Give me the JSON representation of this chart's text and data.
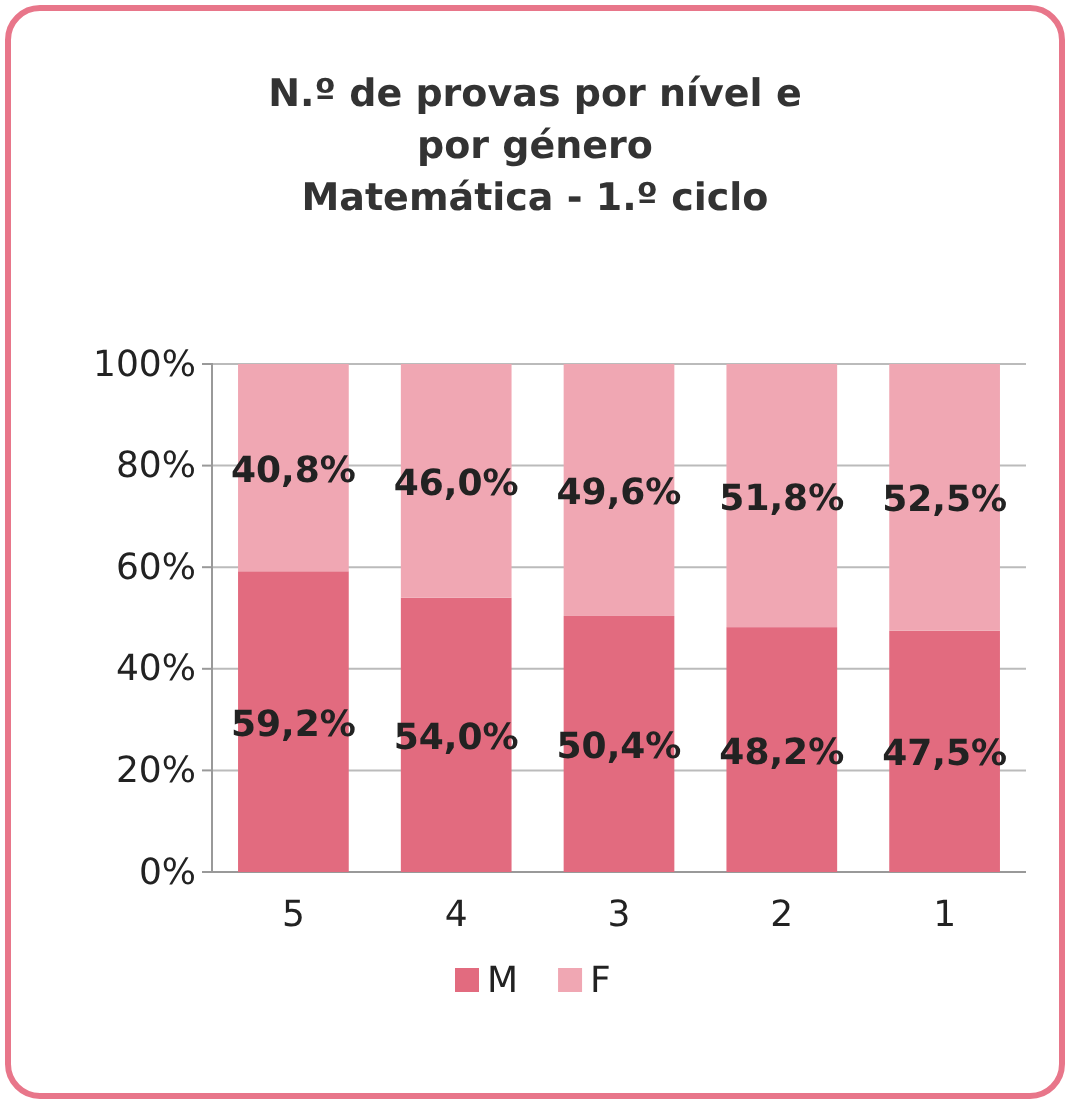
{
  "chart_data": {
    "type": "bar",
    "title": "N.º de provas por nível e por género",
    "subtitle": "Matemática - 1.º ciclo",
    "categories": [
      "5",
      "4",
      "3",
      "2",
      "1"
    ],
    "stacked": true,
    "series": [
      {
        "name": "M",
        "color": "#e26b7f",
        "values": [
          59.2,
          54.0,
          50.4,
          48.2,
          47.5
        ],
        "value_labels": [
          "59,2%",
          "54,0%",
          "50,4%",
          "48,2%",
          "47,5%"
        ]
      },
      {
        "name": "F",
        "color": "#f0a7b3",
        "values": [
          40.8,
          46.0,
          49.6,
          51.8,
          52.5
        ],
        "value_labels": [
          "40,8%",
          "46,0%",
          "49,6%",
          "51,8%",
          "52,5%"
        ]
      }
    ],
    "ylim": [
      0,
      100
    ],
    "yticks": [
      {
        "value": 0,
        "label": "0%"
      },
      {
        "value": 20,
        "label": "20%"
      },
      {
        "value": 40,
        "label": "40%"
      },
      {
        "value": 60,
        "label": "60%"
      },
      {
        "value": 80,
        "label": "80%"
      },
      {
        "value": 100,
        "label": "100%"
      }
    ],
    "grid": "y",
    "legend": "bottom"
  }
}
